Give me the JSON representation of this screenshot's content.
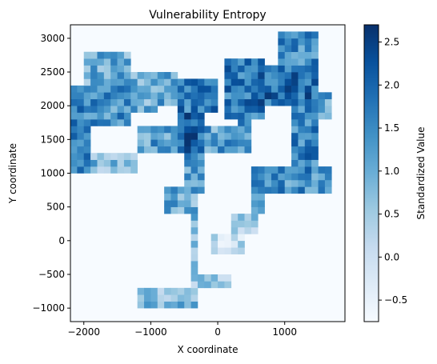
{
  "chart_data": {
    "type": "heatmap",
    "title": "Vulnerability Entropy",
    "xlabel": "X coordinate",
    "ylabel": "Y coordinate",
    "xlim": [
      -2200,
      1900
    ],
    "ylim": [
      -1200,
      3200
    ],
    "xticks": [
      -2000,
      -1000,
      0,
      1000
    ],
    "xtick_labels": [
      "−2000",
      "−1000",
      "0",
      "1000"
    ],
    "yticks": [
      -1000,
      -500,
      0,
      500,
      1000,
      1500,
      2000,
      2500,
      3000
    ],
    "ytick_labels": [
      "−1000",
      "−500",
      "0",
      "500",
      "1000",
      "1500",
      "2000",
      "2500",
      "3000"
    ],
    "colorbar": {
      "label": "Standardized Value",
      "range": [
        -0.75,
        2.7
      ],
      "ticks": [
        -0.5,
        0.0,
        0.5,
        1.0,
        1.5,
        2.0,
        2.5
      ],
      "tick_labels": [
        "−0.5",
        "0.0",
        "0.5",
        "1.0",
        "1.5",
        "2.0",
        "2.5"
      ],
      "colormap": "Blues"
    },
    "background_value": -0.75,
    "cell_size": 100,
    "regions": [
      {
        "x": [
          -2200,
          -1900
        ],
        "y": [
          1000,
          2200
        ],
        "value": 1.5
      },
      {
        "x": [
          -2200,
          -1300
        ],
        "y": [
          1700,
          2300
        ],
        "value": 1.4
      },
      {
        "x": [
          -2000,
          -1300
        ],
        "y": [
          2300,
          2800
        ],
        "value": 1.0
      },
      {
        "x": [
          -1900,
          -1200
        ],
        "y": [
          1000,
          1300
        ],
        "value": 0.8
      },
      {
        "x": [
          -1500,
          -900
        ],
        "y": [
          1900,
          2500
        ],
        "value": 1.0
      },
      {
        "x": [
          -900,
          -600
        ],
        "y": [
          2000,
          2500
        ],
        "value": 1.2
      },
      {
        "x": [
          -600,
          0
        ],
        "y": [
          1900,
          2400
        ],
        "value": 1.7
      },
      {
        "x": [
          -600,
          -200
        ],
        "y": [
          1300,
          1900
        ],
        "value": 2.0
      },
      {
        "x": [
          -1200,
          400
        ],
        "y": [
          1300,
          1700
        ],
        "value": 1.2
      },
      {
        "x": [
          -500,
          -200
        ],
        "y": [
          700,
          1300
        ],
        "value": 1.3
      },
      {
        "x": [
          -800,
          -300
        ],
        "y": [
          400,
          800
        ],
        "value": 1.0
      },
      {
        "x": [
          -400,
          -300
        ],
        "y": [
          -900,
          400
        ],
        "value": 0.7
      },
      {
        "x": [
          -1200,
          -300
        ],
        "y": [
          -1000,
          -700
        ],
        "value": 0.8
      },
      {
        "x": [
          -300,
          200
        ],
        "y": [
          -700,
          -500
        ],
        "value": 0.4
      },
      {
        "x": [
          100,
          700
        ],
        "y": [
          1800,
          2700
        ],
        "value": 1.7
      },
      {
        "x": [
          300,
          500
        ],
        "y": [
          1300,
          1800
        ],
        "value": 1.3
      },
      {
        "x": [
          500,
          1500
        ],
        "y": [
          2000,
          2600
        ],
        "value": 1.9
      },
      {
        "x": [
          900,
          1500
        ],
        "y": [
          2600,
          3100
        ],
        "value": 1.5
      },
      {
        "x": [
          1100,
          1500
        ],
        "y": [
          1000,
          2000
        ],
        "value": 1.6
      },
      {
        "x": [
          1400,
          1700
        ],
        "y": [
          1800,
          2200
        ],
        "value": 1.2
      },
      {
        "x": [
          500,
          1700
        ],
        "y": [
          700,
          1100
        ],
        "value": 1.4
      },
      {
        "x": [
          500,
          700
        ],
        "y": [
          400,
          1100
        ],
        "value": 1.3
      },
      {
        "x": [
          200,
          600
        ],
        "y": [
          100,
          400
        ],
        "value": 0.5
      },
      {
        "x": [
          -100,
          400
        ],
        "y": [
          -200,
          100
        ],
        "value": 0.1
      }
    ]
  }
}
